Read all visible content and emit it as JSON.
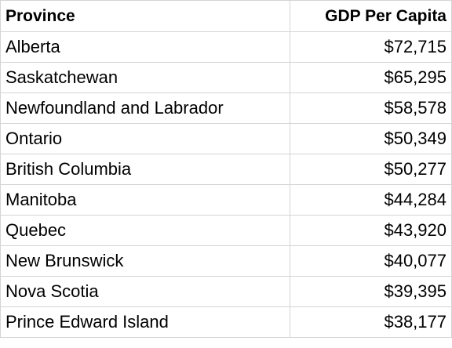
{
  "table": {
    "headers": {
      "province": "Province",
      "gdp": "GDP Per Capita"
    },
    "rows": [
      {
        "province": "Alberta",
        "gdp": "$72,715"
      },
      {
        "province": "Saskatchewan",
        "gdp": "$65,295"
      },
      {
        "province": "Newfoundland and Labrador",
        "gdp": "$58,578"
      },
      {
        "province": "Ontario",
        "gdp": "$50,349"
      },
      {
        "province": "British Columbia",
        "gdp": "$50,277"
      },
      {
        "province": "Manitoba",
        "gdp": "$44,284"
      },
      {
        "province": "Quebec",
        "gdp": "$43,920"
      },
      {
        "province": "New Brunswick",
        "gdp": "$40,077"
      },
      {
        "province": "Nova Scotia",
        "gdp": "$39,395"
      },
      {
        "province": "Prince Edward Island",
        "gdp": "$38,177"
      }
    ]
  },
  "colors": {
    "gridline": "#d4d4d4",
    "text": "#000000",
    "background": "#ffffff"
  }
}
